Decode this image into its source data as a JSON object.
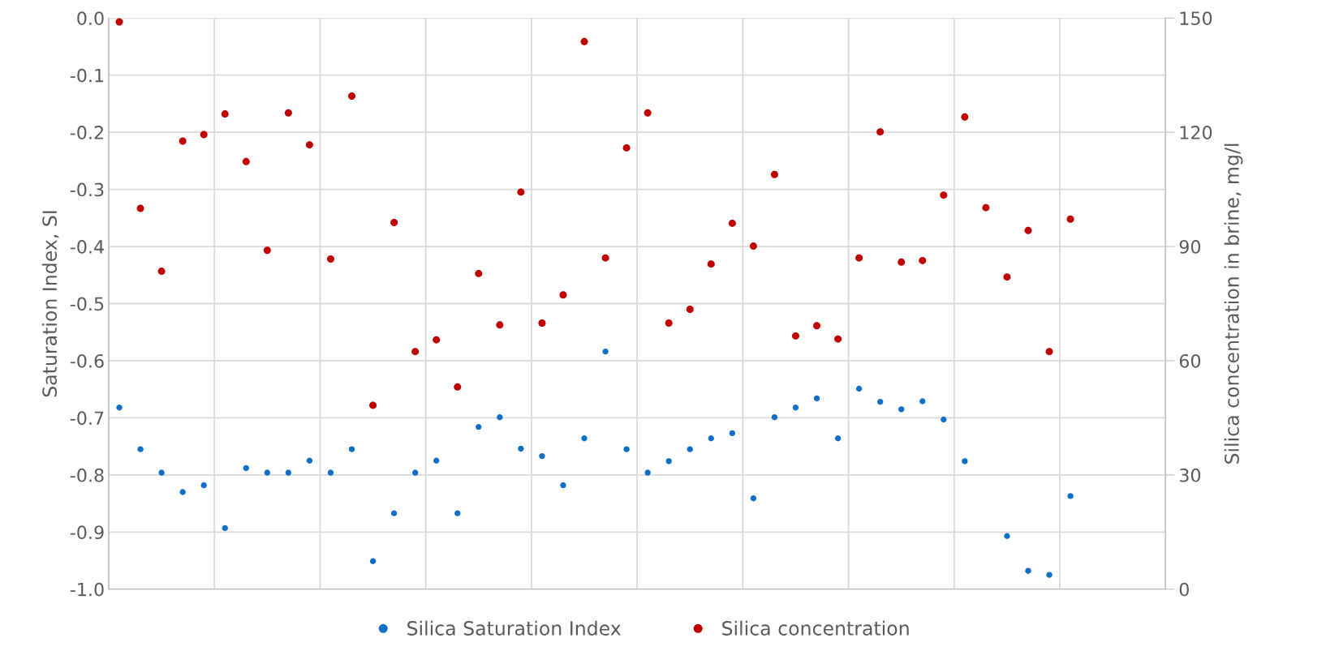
{
  "chart_data": {
    "type": "scatter",
    "ylabel": "Saturation Index, SI",
    "y2label": "Silica concentration in brine, mg/l",
    "categories": [
      null,
      null,
      null,
      null,
      null,
      null,
      null,
      null,
      null,
      null,
      null,
      null,
      null,
      null,
      null,
      null,
      null,
      null,
      null,
      null,
      null,
      null,
      null,
      null,
      null,
      null,
      null,
      null,
      null,
      null,
      null,
      null,
      null,
      null,
      null,
      null,
      null,
      null,
      null,
      null,
      null,
      null,
      null,
      null,
      null,
      null,
      null,
      null,
      null,
      null
    ],
    "ylim": [
      -1.0,
      0.0
    ],
    "yticks": [
      {
        "value": -1.0,
        "label": "-1.0"
      },
      {
        "value": -0.9,
        "label": "-0.9"
      },
      {
        "value": -0.8,
        "label": "-0.8"
      },
      {
        "value": -0.7,
        "label": "-0.7"
      },
      {
        "value": -0.6,
        "label": "-0.6"
      },
      {
        "value": -0.5,
        "label": "-0.5"
      },
      {
        "value": -0.4,
        "label": "-0.4"
      },
      {
        "value": -0.3,
        "label": "-0.3"
      },
      {
        "value": -0.2,
        "label": "-0.2"
      },
      {
        "value": -0.1,
        "label": "-0.1"
      },
      {
        "value": 0.0,
        "label": "0.0"
      }
    ],
    "y2lim": [
      0,
      150
    ],
    "y2ticks": [
      0,
      30,
      60,
      90,
      120,
      150
    ],
    "grid": true,
    "legend": "bottom",
    "marker": "circle",
    "series": [
      {
        "name": "Silica Saturation Index",
        "color": "#0f6fc6",
        "values": [
          -0.682,
          -0.755,
          -0.796,
          -0.83,
          -0.818,
          -0.893,
          -0.788,
          -0.796,
          -0.796,
          -0.775,
          -0.796,
          -0.755,
          -0.951,
          -0.867,
          -0.796,
          -0.775,
          -0.867,
          -0.716,
          -0.699,
          -0.754,
          -0.767,
          -0.818,
          -0.736,
          -0.584,
          -0.755,
          -0.796,
          -0.776,
          -0.755,
          -0.736,
          -0.727,
          -0.841,
          -0.699,
          -0.682,
          -0.666,
          -0.736,
          -0.649,
          -0.672,
          -0.685,
          -0.671,
          -0.703,
          -0.776,
          null,
          -0.907,
          -0.968,
          -0.975,
          -0.837,
          null,
          null,
          null,
          null
        ]
      },
      {
        "name": "Silica concentration",
        "color": "#c00000",
        "axis": "y2",
        "values": [
          149,
          100,
          83.5,
          117.7,
          119.4,
          124.8,
          112.3,
          89.0,
          125.1,
          116.7,
          86.7,
          129.5,
          48.3,
          96.3,
          62.4,
          65.5,
          53.1,
          82.9,
          69.4,
          104.3,
          69.9,
          77.3,
          143.8,
          87.0,
          115.9,
          125.1,
          69.9,
          73.5,
          85.4,
          96.1,
          90.1,
          108.9,
          66.5,
          69.2,
          65.7,
          87.0,
          120.1,
          85.9,
          86.3,
          103.5,
          124.0,
          100.2,
          82.0,
          94.2,
          62.4,
          97.2,
          null,
          null,
          null,
          null
        ]
      }
    ]
  }
}
